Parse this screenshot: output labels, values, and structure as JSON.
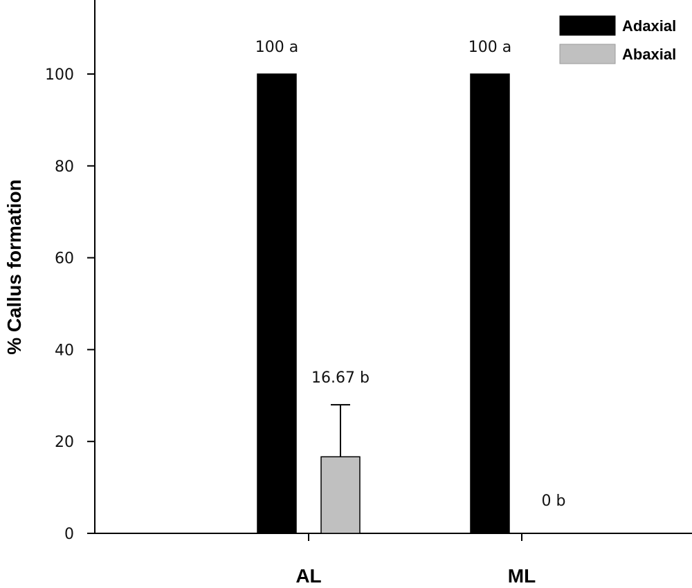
{
  "chart_data": {
    "type": "bar",
    "title": "",
    "xlabel": "",
    "ylabel": "% Callus formation",
    "ylim": [
      0,
      115
    ],
    "yticks": [
      0,
      20,
      40,
      60,
      80,
      100
    ],
    "categories": [
      "AL",
      "ML"
    ],
    "series": [
      {
        "name": "Adaxial",
        "color": "#000000",
        "values": [
          100,
          100
        ],
        "errors": [
          0,
          0
        ],
        "labels": [
          "100 a",
          "100 a"
        ]
      },
      {
        "name": "Abaxial",
        "color": "#c0c0c0",
        "values": [
          16.67,
          0
        ],
        "errors": [
          11.33,
          0
        ],
        "labels": [
          "16.67 b",
          "0 b"
        ]
      }
    ],
    "legend_position": "top-right",
    "grid": false
  }
}
